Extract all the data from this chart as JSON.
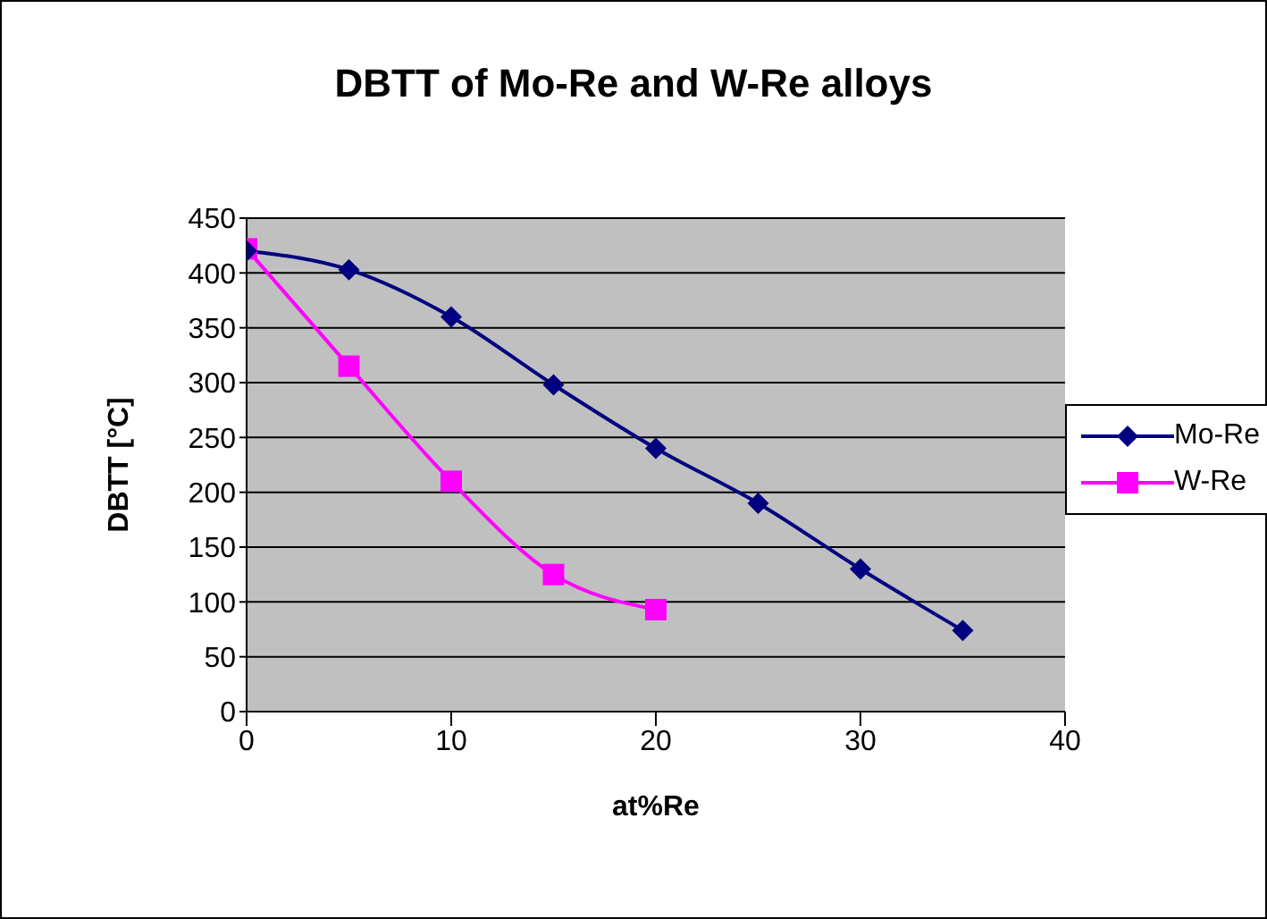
{
  "chart_data": {
    "type": "line",
    "title": "DBTT of Mo-Re and W-Re alloys",
    "xlabel": "at%Re",
    "ylabel": "DBTT [°C]",
    "series": [
      {
        "name": "Mo-Re",
        "color": "#000080",
        "marker": "diamond",
        "x": [
          0,
          5,
          10,
          15,
          20,
          25,
          30,
          35
        ],
        "values": [
          420,
          403,
          360,
          298,
          240,
          190,
          130,
          74
        ]
      },
      {
        "name": "W-Re",
        "color": "#ff00ff",
        "marker": "square",
        "x": [
          0,
          5,
          10,
          15,
          20
        ],
        "values": [
          422,
          315,
          210,
          125,
          93
        ]
      }
    ],
    "xlim": [
      0,
      40
    ],
    "xticks": [
      0,
      10,
      20,
      30,
      40
    ],
    "ylim": [
      0,
      450
    ],
    "yticks": [
      0,
      50,
      100,
      150,
      200,
      250,
      300,
      350,
      400,
      450
    ],
    "grid": "y",
    "legend": "right"
  }
}
